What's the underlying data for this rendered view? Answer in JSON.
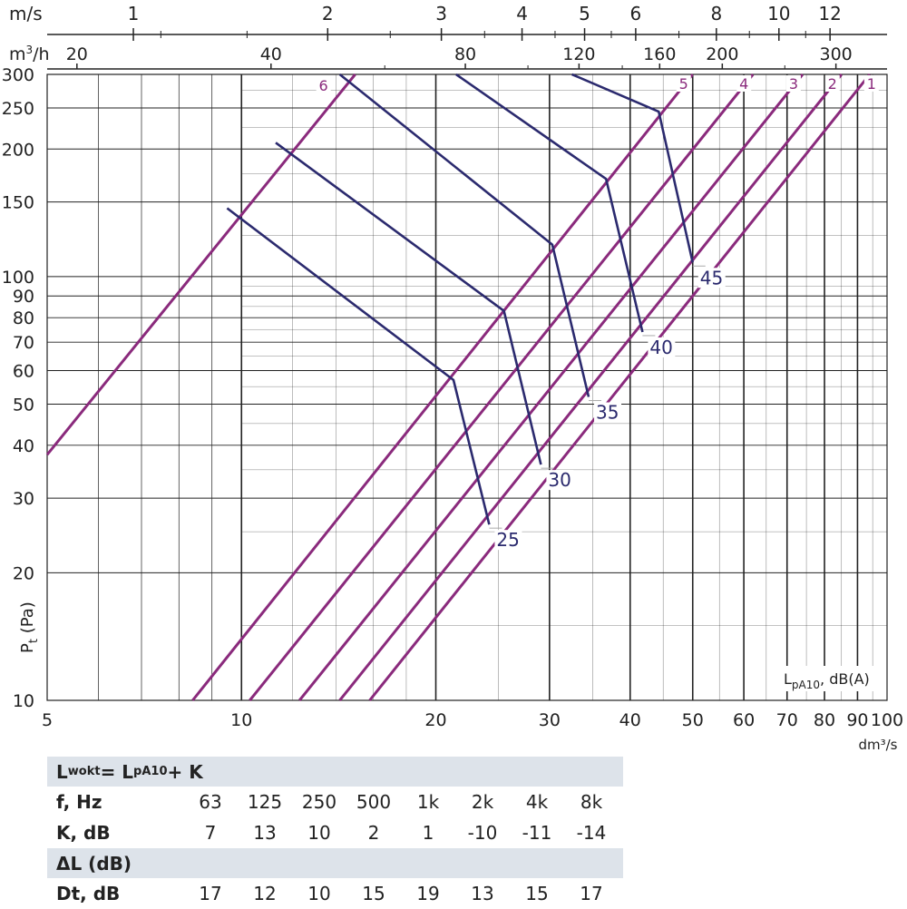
{
  "chart_data": {
    "type": "line",
    "x_axis": {
      "label": "dm³/s",
      "scale": "log",
      "range": [
        5,
        100
      ],
      "ticks": [
        5,
        10,
        20,
        30,
        40,
        50,
        60,
        70,
        80,
        90,
        100
      ]
    },
    "y_axis": {
      "label": "Pt (Pa)",
      "label_main": "P",
      "label_sub": "t",
      "label_rest": " (Pa)",
      "scale": "log",
      "range": [
        10,
        300
      ],
      "ticks": [
        10,
        20,
        30,
        40,
        50,
        60,
        70,
        80,
        90,
        100,
        150,
        200,
        250,
        300
      ]
    },
    "top_axis_velocity": {
      "unit": "m/s",
      "ticks": [
        {
          "label": "1",
          "x": 6.8
        },
        {
          "label": "2",
          "x": 13.6
        },
        {
          "label": "3",
          "x": 20.4
        },
        {
          "label": "4",
          "x": 27.2
        },
        {
          "label": "5",
          "x": 34
        },
        {
          "label": "6",
          "x": 40.8
        },
        {
          "label": "8",
          "x": 54.4
        },
        {
          "label": "10",
          "x": 68
        },
        {
          "label": "12",
          "x": 81.6
        }
      ]
    },
    "top_axis_flow": {
      "unit": "m³/h",
      "unit_main": "m",
      "unit_sup": "3",
      "unit_rest": "/h",
      "ticks": [
        {
          "label": "20",
          "x": 5.56
        },
        {
          "label": "40",
          "x": 11.11
        },
        {
          "label": "80",
          "x": 22.22
        },
        {
          "label": "120",
          "x": 33.33
        },
        {
          "label": "160",
          "x": 44.44
        },
        {
          "label": "200",
          "x": 55.56
        },
        {
          "label": "300",
          "x": 83.33
        }
      ]
    },
    "grid": true,
    "series": [
      {
        "name": "1",
        "kind": "damper",
        "points": [
          [
            15.8,
            10
          ],
          [
            94,
            300
          ]
        ]
      },
      {
        "name": "2",
        "kind": "damper",
        "points": [
          [
            14.2,
            10
          ],
          [
            85,
            300
          ]
        ]
      },
      {
        "name": "3",
        "kind": "damper",
        "points": [
          [
            12.3,
            10
          ],
          [
            74,
            300
          ]
        ]
      },
      {
        "name": "4",
        "kind": "damper",
        "points": [
          [
            10.3,
            10
          ],
          [
            62,
            300
          ]
        ]
      },
      {
        "name": "5",
        "kind": "damper",
        "points": [
          [
            8.4,
            10
          ],
          [
            50,
            300
          ]
        ]
      },
      {
        "name": "6",
        "kind": "damper",
        "points": [
          [
            5,
            38
          ],
          [
            15,
            300
          ]
        ]
      },
      {
        "name": "25",
        "kind": "sound",
        "points": [
          [
            9.5,
            145
          ],
          [
            21.3,
            57
          ],
          [
            24.2,
            26
          ]
        ]
      },
      {
        "name": "30",
        "kind": "sound",
        "points": [
          [
            11.3,
            207
          ],
          [
            25.5,
            83
          ],
          [
            29.1,
            36
          ]
        ]
      },
      {
        "name": "35",
        "kind": "sound",
        "points": [
          [
            14.2,
            300
          ],
          [
            30.3,
            119
          ],
          [
            34.5,
            52
          ]
        ]
      },
      {
        "name": "40",
        "kind": "sound",
        "points": [
          [
            21.5,
            300
          ],
          [
            36.7,
            170
          ],
          [
            41.8,
            74
          ]
        ]
      },
      {
        "name": "45",
        "kind": "sound",
        "points": [
          [
            32.5,
            300
          ],
          [
            44.3,
            245
          ],
          [
            50,
            108
          ]
        ]
      }
    ],
    "lpa_label": {
      "main": "L",
      "sub": "pA10",
      "rest": ", dB(A)"
    }
  },
  "table": {
    "header1": {
      "main": "L",
      "sub": "wokt",
      "mid": " = L",
      "sub2": "pA10",
      "end": " + K"
    },
    "freq_label": "f, Hz",
    "frequencies": [
      "63",
      "125",
      "250",
      "500",
      "1k",
      "2k",
      "4k",
      "8k"
    ],
    "k_label": "K, dB",
    "k_values": [
      "7",
      "13",
      "10",
      "2",
      "1",
      "-10",
      "-11",
      "-14"
    ],
    "header2": "ΔL (dB)",
    "dt_label": "Dt, dB",
    "dt_values": [
      "17",
      "12",
      "10",
      "15",
      "19",
      "13",
      "15",
      "17"
    ]
  },
  "colors": {
    "damper": "#8a2a7c",
    "sound": "#2b2a6e",
    "grid": "#222222",
    "band": "#dde3ea"
  }
}
